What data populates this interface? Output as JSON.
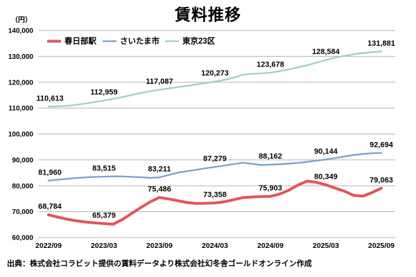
{
  "title": "賃料推移",
  "unit_label": "（円）",
  "source": "出典：株式会社コラビット提供の賃料データより株式会社幻冬舎ゴールドオンライン作成",
  "colors": {
    "kasukabe_red": "#e2545b",
    "saitama_blue": "#78a1ce",
    "tokyo_teal": "#9fcfc5",
    "gridline": "#b3b3b3",
    "text": "#000000",
    "background": "#ffffff"
  },
  "chart_data": {
    "type": "line",
    "title": "賃料推移",
    "ylabel": "（円）",
    "ylim": [
      60000,
      140000
    ],
    "ytick_step": 10000,
    "ytick_labels": [
      "60,000",
      "70,000",
      "80,000",
      "90,000",
      "100,000",
      "110,000",
      "120,000",
      "130,000",
      "140,000"
    ],
    "grid": "horizontal",
    "legend_position": "top-left-inside",
    "x_tick_labels": [
      "2022/09",
      "2023/03",
      "2023/09",
      "2024/03",
      "2024/09",
      "2025/03",
      "2025/09"
    ],
    "months_span": "2022/09 - 2025/09 monthly",
    "labeled_point_interval": 6,
    "series": [
      {
        "name": "春日部駅",
        "color": "#e2545b",
        "line_width": 4,
        "labeled_values": [
          68784,
          65379,
          75486,
          73358,
          75903,
          80349,
          79063
        ],
        "monthly_values": [
          68784,
          67900,
          67100,
          66450,
          66000,
          65650,
          65379,
          65150,
          67000,
          69300,
          71600,
          73800,
          75486,
          74900,
          74200,
          73500,
          73200,
          73250,
          73358,
          73800,
          74600,
          75400,
          75650,
          75800,
          75903,
          76800,
          78300,
          80300,
          81800,
          81300,
          80349,
          79100,
          77900,
          76300,
          76000,
          77400,
          79063
        ]
      },
      {
        "name": "さいたま市",
        "color": "#78a1ce",
        "line_width": 2.3,
        "labeled_values": [
          81960,
          83515,
          83211,
          87279,
          88162,
          90144,
          92694
        ],
        "monthly_values": [
          81960,
          82350,
          82700,
          83000,
          83250,
          83420,
          83515,
          83650,
          83600,
          83450,
          83300,
          83050,
          83211,
          84200,
          85100,
          85650,
          86200,
          86750,
          87279,
          87800,
          88350,
          88900,
          88500,
          88000,
          88162,
          88300,
          88550,
          88850,
          89250,
          89700,
          90144,
          90700,
          91300,
          91900,
          92300,
          92550,
          92694
        ]
      },
      {
        "name": "東京23区",
        "color": "#9fcfc5",
        "line_width": 2.3,
        "labeled_values": [
          110613,
          112959,
          117087,
          120273,
          123678,
          128584,
          131881
        ],
        "monthly_values": [
          110613,
          110700,
          110900,
          111250,
          111800,
          112380,
          112959,
          113600,
          114300,
          115100,
          115850,
          116500,
          117087,
          117600,
          118100,
          118600,
          119150,
          119700,
          120273,
          120900,
          121700,
          122900,
          123250,
          123450,
          123678,
          124300,
          125000,
          125800,
          126600,
          127600,
          128584,
          129500,
          130200,
          130800,
          131250,
          131600,
          131881
        ]
      }
    ]
  }
}
